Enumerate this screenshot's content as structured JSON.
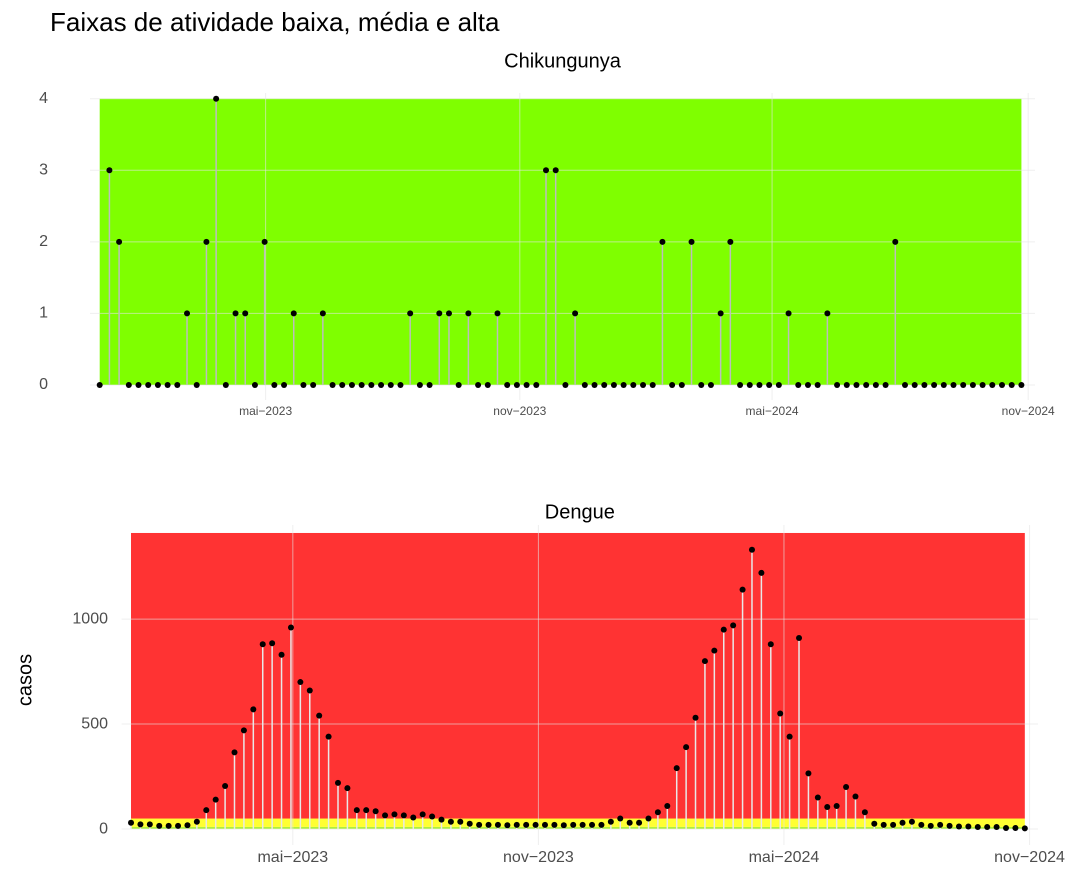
{
  "title": "Faixas de atividade baixa, média e alta",
  "ylabel": "casos",
  "chart_data": [
    {
      "type": "lollipop",
      "title": "Chikungunya",
      "x": [
        0,
        1,
        2,
        3,
        4,
        5,
        6,
        7,
        8,
        9,
        10,
        11,
        12,
        13,
        14,
        15,
        16,
        17,
        18,
        19,
        20,
        21,
        22,
        23,
        24,
        25,
        26,
        27,
        28,
        29,
        30,
        31,
        32,
        33,
        34,
        35,
        36,
        37,
        38,
        39,
        40,
        41,
        42,
        43,
        44,
        45,
        46,
        47,
        48,
        49,
        50,
        51,
        52,
        53,
        54,
        55,
        56,
        57,
        58,
        59,
        60,
        61,
        62,
        63,
        64,
        65,
        66,
        67,
        68,
        69,
        70,
        71,
        72,
        73,
        74,
        75,
        76,
        77,
        78,
        79,
        80,
        81,
        82,
        83,
        84,
        85,
        86,
        87,
        88,
        89,
        90,
        91,
        92,
        93,
        94,
        95
      ],
      "values": [
        0,
        3,
        2,
        0,
        0,
        0,
        0,
        0,
        0,
        1,
        0,
        2,
        4,
        0,
        1,
        1,
        0,
        2,
        0,
        0,
        1,
        0,
        0,
        1,
        0,
        0,
        0,
        0,
        0,
        0,
        0,
        0,
        1,
        0,
        0,
        1,
        1,
        0,
        1,
        0,
        0,
        1,
        0,
        0,
        0,
        0,
        3,
        3,
        0,
        1,
        0,
        0,
        0,
        0,
        0,
        0,
        0,
        0,
        2,
        0,
        0,
        2,
        0,
        0,
        1,
        2,
        0,
        0,
        0,
        0,
        0,
        1,
        0,
        0,
        0,
        1,
        0,
        0,
        0,
        0,
        0,
        0,
        2,
        0,
        0,
        0,
        0,
        0,
        0,
        0,
        0,
        0,
        0,
        0,
        0,
        0
      ],
      "bands": [
        {
          "from": 0,
          "to": 4,
          "color": "#7fff00"
        }
      ],
      "xlim": [
        -1,
        96.4
      ],
      "ylim": [
        -0.21,
        4.08
      ],
      "xticks": [
        {
          "value": 17.1,
          "label": "mai−2023"
        },
        {
          "value": 43.3,
          "label": "nov−2023"
        },
        {
          "value": 69.3,
          "label": "mai−2024"
        },
        {
          "value": 95.7,
          "label": "nov−2024"
        }
      ],
      "yticks": [
        0,
        1,
        2,
        3,
        4
      ],
      "grid": true,
      "color": "#000000",
      "stem_color": "#bdbdbd"
    },
    {
      "type": "lollipop",
      "title": "Dengue",
      "x": [
        0,
        1,
        2,
        3,
        4,
        5,
        6,
        7,
        8,
        9,
        10,
        11,
        12,
        13,
        14,
        15,
        16,
        17,
        18,
        19,
        20,
        21,
        22,
        23,
        24,
        25,
        26,
        27,
        28,
        29,
        30,
        31,
        32,
        33,
        34,
        35,
        36,
        37,
        38,
        39,
        40,
        41,
        42,
        43,
        44,
        45,
        46,
        47,
        48,
        49,
        50,
        51,
        52,
        53,
        54,
        55,
        56,
        57,
        58,
        59,
        60,
        61,
        62,
        63,
        64,
        65,
        66,
        67,
        68,
        69,
        70,
        71,
        72,
        73,
        74,
        75,
        76,
        77,
        78,
        79,
        80,
        81,
        82,
        83,
        84,
        85,
        86,
        87,
        88,
        89,
        90,
        91,
        92,
        93,
        94,
        95
      ],
      "values": [
        30,
        22,
        22,
        15,
        15,
        15,
        18,
        35,
        90,
        140,
        205,
        365,
        470,
        570,
        880,
        885,
        830,
        960,
        700,
        660,
        540,
        440,
        220,
        195,
        90,
        90,
        85,
        65,
        70,
        65,
        55,
        70,
        60,
        45,
        35,
        35,
        25,
        20,
        20,
        20,
        18,
        20,
        20,
        20,
        20,
        20,
        18,
        20,
        20,
        20,
        20,
        35,
        50,
        30,
        30,
        50,
        80,
        110,
        290,
        390,
        530,
        800,
        850,
        950,
        970,
        1140,
        1330,
        1220,
        880,
        550,
        440,
        910,
        265,
        150,
        105,
        110,
        200,
        155,
        80,
        25,
        20,
        20,
        30,
        35,
        20,
        15,
        20,
        15,
        12,
        12,
        10,
        10,
        10,
        5,
        5,
        3
      ],
      "bands": [
        {
          "from": 0,
          "to": 10,
          "color": "#aef03c"
        },
        {
          "from": 10,
          "to": 50,
          "color": "#ffff33"
        },
        {
          "from": 50,
          "to": 1410,
          "color": "#ff3333"
        }
      ],
      "xlim": [
        -1,
        96.4
      ],
      "ylim": [
        -76,
        1448
      ],
      "xticks": [
        {
          "value": 17.2,
          "label": "mai−2023"
        },
        {
          "value": 43.3,
          "label": "nov−2023"
        },
        {
          "value": 69.4,
          "label": "mai−2024"
        },
        {
          "value": 95.5,
          "label": "nov−2024"
        }
      ],
      "yticks": [
        0,
        500,
        1000
      ],
      "grid": true,
      "color": "#000000",
      "stem_color": "#e8e8e8"
    }
  ]
}
